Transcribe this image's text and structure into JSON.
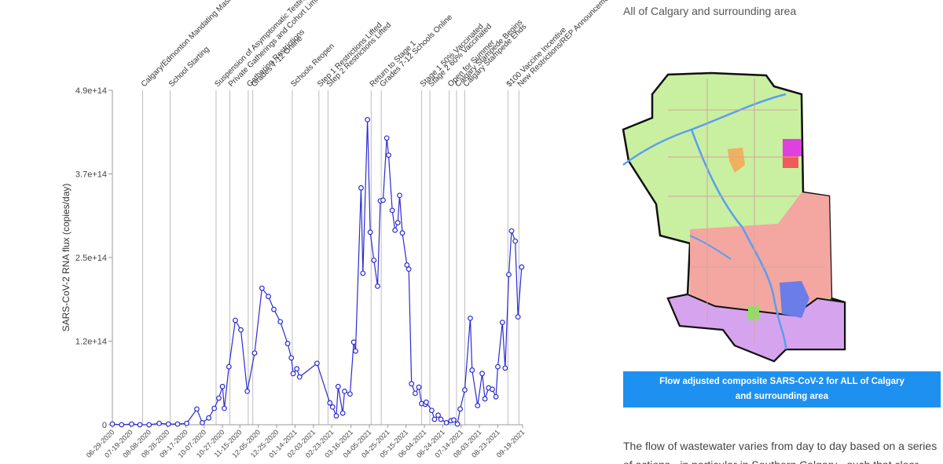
{
  "chart_data": {
    "type": "line",
    "y_label": "SARS-CoV-2 RNA flux (copies/day)",
    "color": "#2c2cd0",
    "xlim": [
      "06-29-2020",
      "09-19-2021"
    ],
    "xticks": [
      "06-29-2020",
      "07-19-2020",
      "08-08-2020",
      "08-28-2020",
      "09-17-2020",
      "10-07-2020",
      "10-27-2020",
      "11-15-2020",
      "12-05-2020",
      "12-25-2020",
      "01-14-2021",
      "02-03-2021",
      "02-23-2021",
      "03-16-2021",
      "04-05-2021",
      "04-25-2021",
      "05-15-2021",
      "06-04-2021",
      "06-24-2021",
      "07-14-2021",
      "08-03-2021",
      "08-23-2021",
      "09-19-2021"
    ],
    "ylim": [
      0,
      490000000000000.0
    ],
    "yticks": [
      0,
      {
        "value": 122500000000000.0,
        "label": "1.2e+14"
      },
      {
        "value": 245000000000000.0,
        "label": "2.5e+14"
      },
      {
        "value": 367500000000000.0,
        "label": "3.7e+14"
      },
      {
        "value": 490000000000000.0,
        "label": "4.9e+14"
      }
    ],
    "x": [
      "06-29-2020",
      "07-09-2020",
      "07-20-2020",
      "07-29-2020",
      "08-08-2020",
      "08-19-2020",
      "08-29-2020",
      "09-08-2020",
      "09-18-2020",
      "09-29-2020",
      "10-05-2020",
      "10-12-2020",
      "10-18-2020",
      "10-23-2020",
      "10-27-2020",
      "10-29-2020",
      "11-03-2020",
      "11-10-2020",
      "11-16-2020",
      "11-23-2020",
      "12-01-2020",
      "12-09-2020",
      "12-16-2020",
      "12-22-2020",
      "12-29-2020",
      "01-06-2021",
      "01-10-2021",
      "01-12-2021",
      "01-16-2021",
      "01-19-2021",
      "02-07-2021",
      "02-21-2021",
      "02-24-2021",
      "02-28-2021",
      "03-02-2021",
      "03-07-2021",
      "03-09-2021",
      "03-15-2021",
      "03-19-2021",
      "03-21-2021",
      "03-27-2021",
      "03-29-2021",
      "04-03-2021",
      "04-06-2021",
      "04-10-2021",
      "04-14-2021",
      "04-17-2021",
      "04-20-2021",
      "04-24-2021",
      "04-26-2021",
      "04-30-2021",
      "05-03-2021",
      "05-06-2021",
      "05-08-2021",
      "05-11-2021",
      "05-16-2021",
      "05-18-2021",
      "05-21-2021",
      "05-25-2021",
      "05-29-2021",
      "06-01-2021",
      "06-05-2021",
      "06-06-2021",
      "06-12-2021",
      "06-15-2021",
      "06-19-2021",
      "06-22-2021",
      "06-28-2021",
      "07-03-2021",
      "07-06-2021",
      "07-10-2021",
      "07-13-2021",
      "07-18-2021",
      "07-24-2021",
      "07-26-2021",
      "08-01-2021",
      "08-06-2021",
      "08-09-2021",
      "08-13-2021",
      "08-17-2021",
      "08-21-2021",
      "08-23-2021",
      "08-28-2021",
      "08-31-2021",
      "09-04-2021",
      "09-07-2021",
      "09-11-2021",
      "09-14-2021",
      "09-18-2021"
    ],
    "values": [
      1000000000000.0,
      0,
      1000000000000.0,
      0,
      0,
      2000000000000.0,
      1000000000000.0,
      1000000000000.0,
      2000000000000.0,
      23000000000000.0,
      3000000000000.0,
      10000000000000.0,
      24000000000000.0,
      39000000000000.0,
      56000000000000.0,
      24000000000000.0,
      85000000000000.0,
      153000000000000.0,
      139000000000000.0,
      49000000000000.0,
      105000000000000.0,
      200000000000000.0,
      188000000000000.0,
      169000000000000.0,
      151000000000000.0,
      119000000000000.0,
      98000000000000.0,
      75000000000000.0,
      82000000000000.0,
      70000000000000.0,
      90000000000000.0,
      32000000000000.0,
      26000000000000.0,
      13000000000000.0,
      56000000000000.0,
      17000000000000.0,
      49000000000000.0,
      45000000000000.0,
      121000000000000.0,
      108000000000000.0,
      347000000000000.0,
      222000000000000.0,
      447000000000000.0,
      282000000000000.0,
      241000000000000.0,
      203000000000000.0,
      328000000000000.0,
      329000000000000.0,
      420000000000000.0,
      395000000000000.0,
      314000000000000.0,
      285000000000000.0,
      296000000000000.0,
      336000000000000.0,
      281000000000000.0,
      234000000000000.0,
      228000000000000.0,
      60000000000000.0,
      46000000000000.0,
      55000000000000.0,
      31000000000000.0,
      30000000000000.0,
      33000000000000.0,
      21000000000000.0,
      8000000000000.0,
      14000000000000.0,
      8000000000000.0,
      3000000000000.0,
      6000000000000.0,
      7000000000000.0,
      1000000000000.0,
      23000000000000.0,
      51000000000000.0,
      156000000000000.0,
      80000000000000.0,
      28000000000000.0,
      75000000000000.0,
      38000000000000.0,
      54000000000000.0,
      52000000000000.0,
      41000000000000.0,
      85000000000000.0,
      150000000000000.0,
      83000000000000.0,
      220000000000000.0,
      284000000000000.0,
      269000000000000.0,
      158000000000000.0,
      231000000000000.0
    ],
    "events": [
      {
        "date": "08-01-2020",
        "label": "Calgary/Edmonton Mandating Masks"
      },
      {
        "date": "08-31-2020",
        "label": "School Starting"
      },
      {
        "date": "10-20-2020",
        "label": "Suspension of Asymptomatic Testing"
      },
      {
        "date": "11-04-2020",
        "label": "Private Gatherings and Cohort Limits"
      },
      {
        "date": "11-24-2020",
        "label": "Gathering Restrictions"
      },
      {
        "date": "11-29-2020",
        "label": "Grades 7-12 Online"
      },
      {
        "date": "01-11-2021",
        "label": "Schools Reopen"
      },
      {
        "date": "02-09-2021",
        "label": "Step 1 Restrictions Lifted"
      },
      {
        "date": "02-19-2021",
        "label": "Step 2 Restrictions Lifted"
      },
      {
        "date": "04-07-2021",
        "label": "Return to Stage 1"
      },
      {
        "date": "04-18-2021",
        "label": "Grades 7-12 Schools Online"
      },
      {
        "date": "06-01-2021",
        "label": "Stage 1 50% Vaccinated"
      },
      {
        "date": "06-10-2021",
        "label": "Stage 2 60% Vaccinated"
      },
      {
        "date": "07-01-2021",
        "label": "Open for Summer"
      },
      {
        "date": "07-09-2021",
        "label": "Calgary Stampede Begins"
      },
      {
        "date": "07-18-2021",
        "label": "Calgary Stampede Ends"
      },
      {
        "date": "09-03-2021",
        "label": "$100 Vaccine Incentive"
      },
      {
        "date": "09-15-2021",
        "label": "New Restrictions/REP Announcement"
      }
    ]
  },
  "panel": {
    "heading": "All of Calgary and surrounding area",
    "button": "Flow adjusted composite SARS-CoV-2 for ALL of Calgary and surrounding area",
    "body": "The flow of wastewater varies from day to day based on a series of actions - in particular in Southern Calgary - such that clear"
  }
}
